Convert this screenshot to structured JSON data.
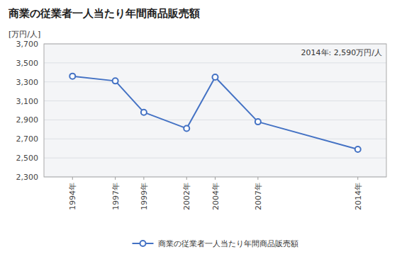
{
  "chart_data": {
    "type": "line",
    "title": "商業の従業者一人当たり年間商品販売額",
    "y_label": "[万円/人]",
    "annotation": "2014年: 2,590万円/人",
    "x": [
      1994,
      1997,
      1999,
      2002,
      2004,
      2007,
      2014
    ],
    "series": [
      {
        "name": "商業の従業者一人当たり年間商品販売額",
        "color": "#4472C4",
        "marker": "circle",
        "values": [
          3360,
          3310,
          2980,
          2810,
          3350,
          2880,
          2590
        ]
      }
    ],
    "xlim": [
      1992,
      2016
    ],
    "xticks": [
      {
        "value": 1994,
        "label": "1994年"
      },
      {
        "value": 1997,
        "label": "1997年"
      },
      {
        "value": 1999,
        "label": "1999年"
      },
      {
        "value": 2002,
        "label": "2002年"
      },
      {
        "value": 2004,
        "label": "2004年"
      },
      {
        "value": 2007,
        "label": "2007年"
      },
      {
        "value": 2014,
        "label": "2014年"
      }
    ],
    "ylim": [
      2300,
      3700
    ],
    "yticks": [
      {
        "value": 2300,
        "label": "2,300"
      },
      {
        "value": 2500,
        "label": "2,500"
      },
      {
        "value": 2700,
        "label": "2,700"
      },
      {
        "value": 2900,
        "label": "2,900"
      },
      {
        "value": 3100,
        "label": "3,100"
      },
      {
        "value": 3300,
        "label": "3,300"
      },
      {
        "value": 3500,
        "label": "3,500"
      },
      {
        "value": 3700,
        "label": "3,700"
      }
    ],
    "grid": true,
    "legend": "bottom"
  }
}
